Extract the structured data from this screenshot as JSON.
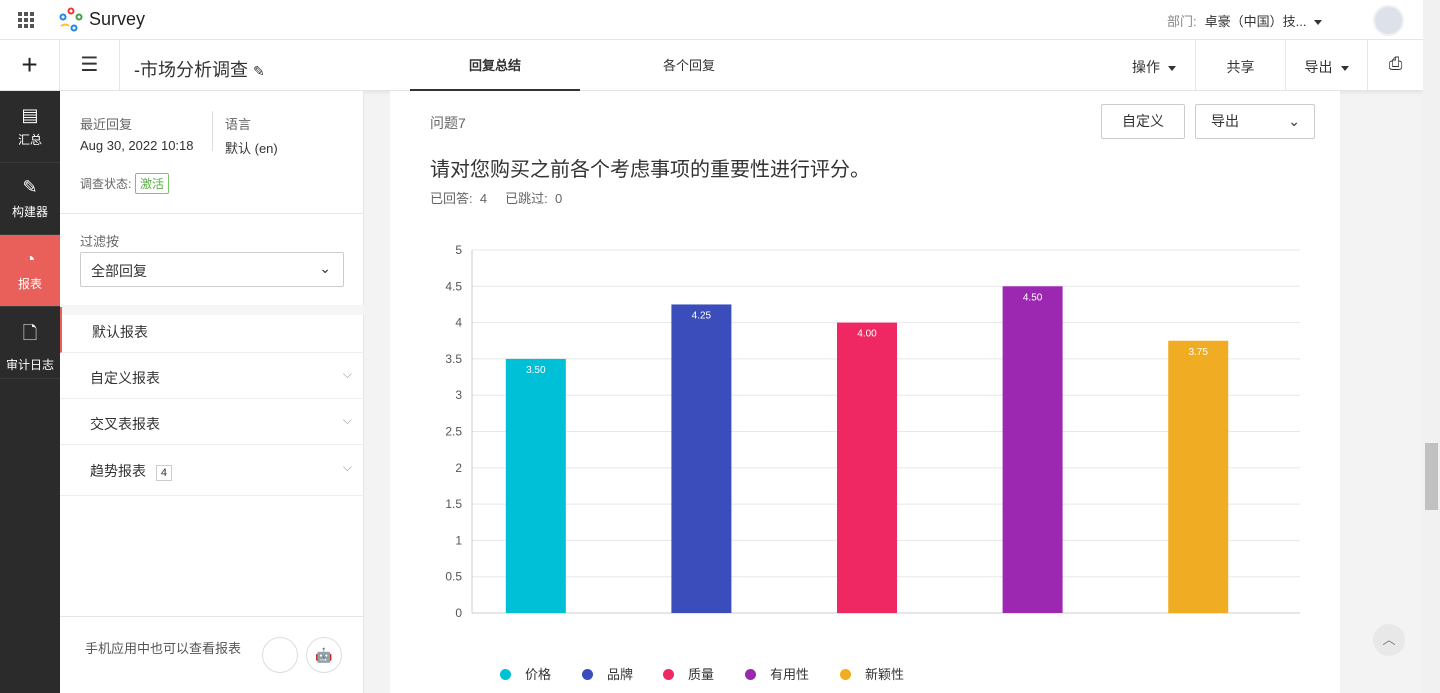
{
  "app": {
    "name": "Survey",
    "dept_label": "部门:",
    "dept_value": "卓豪（中国）技..."
  },
  "header": {
    "title": "-市场分析调查",
    "tabs": [
      {
        "label": "回复总结",
        "active": true
      },
      {
        "label": "各个回复",
        "active": false
      }
    ],
    "actions": {
      "operate": "操作",
      "share": "共享",
      "export": "导出"
    }
  },
  "nav": [
    {
      "label": "汇总",
      "icon": "document-icon"
    },
    {
      "label": "构建器",
      "icon": "pencil-icon"
    },
    {
      "label": "报表",
      "icon": "pie-chart-icon",
      "active": true
    },
    {
      "label": "审计日志",
      "icon": "log-icon"
    }
  ],
  "sidebar": {
    "recent_label": "最近回复",
    "recent_value": "Aug 30, 2022 10:18",
    "lang_label": "语言",
    "lang_value": "默认 (en)",
    "status_label": "调查状态:",
    "status_value": "激活",
    "filter_label": "过滤按",
    "filter_value": "全部回复",
    "items": [
      {
        "label": "默认报表"
      },
      {
        "label": "自定义报表"
      },
      {
        "label": "交叉表报表"
      },
      {
        "label": "趋势报表",
        "count": "4"
      }
    ],
    "mobile_text": "手机应用中也可以查看报表"
  },
  "question": {
    "number": "问题7",
    "title": "请对您购买之前各个考虑事项的重要性进行评分。",
    "answered_label": "已回答:",
    "answered": "4",
    "skipped_label": "已跳过:",
    "skipped": "0",
    "customize": "自定义",
    "export": "导出"
  },
  "chart_data": {
    "type": "bar",
    "categories": [
      "价格",
      "品牌",
      "质量",
      "有用性",
      "新颖性"
    ],
    "values": [
      3.5,
      4.25,
      4.0,
      4.5,
      3.75
    ],
    "data_labels": [
      "3.50",
      "4.25",
      "4.00",
      "4.50",
      "3.75"
    ],
    "colors": [
      "#00c0d8",
      "#3a4dbb",
      "#ef2763",
      "#9c27b0",
      "#f0ad24"
    ],
    "ylim": [
      0,
      5
    ],
    "yticks": [
      "0",
      "0.5",
      "1",
      "1.5",
      "2",
      "2.5",
      "3",
      "3.5",
      "4",
      "4.5",
      "5"
    ],
    "grid": true,
    "legend": "bottom"
  }
}
